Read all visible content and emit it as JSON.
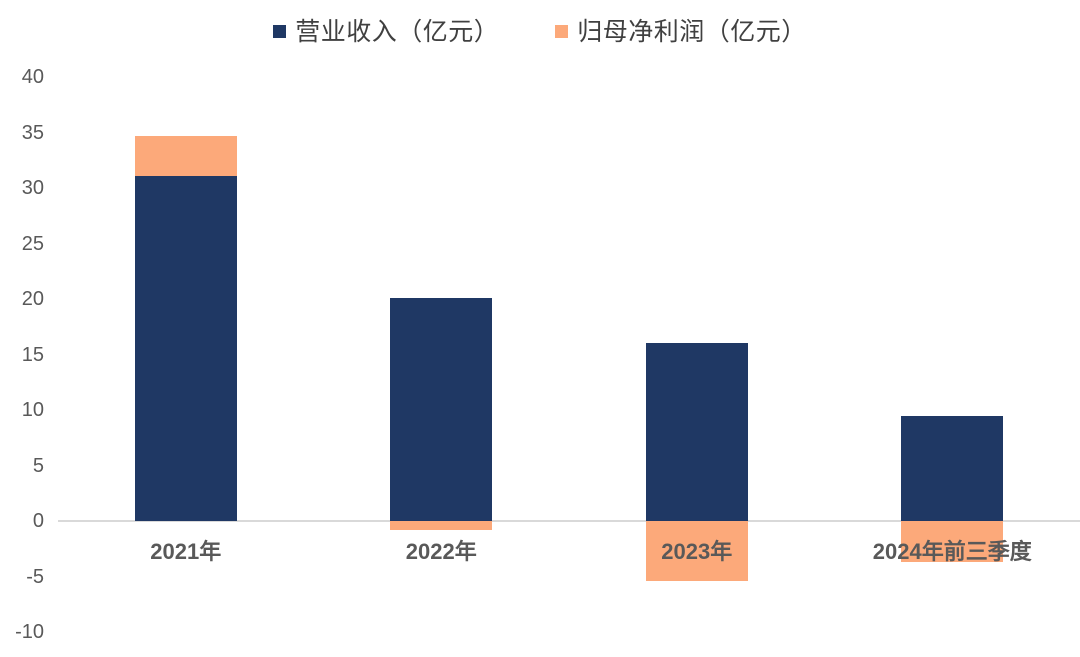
{
  "chart_data": {
    "type": "bar",
    "subtype": "stacked-column",
    "title": "",
    "xlabel": "",
    "ylabel": "",
    "categories": [
      "2021年",
      "2022年",
      "2023年",
      "2024年前三季度"
    ],
    "series": [
      {
        "name": "营业收入（亿元）",
        "color": "#1F3864",
        "values": [
          31.1,
          20.1,
          16.0,
          9.5
        ]
      },
      {
        "name": "归母净利润（亿元）",
        "color": "#FCA97A",
        "values": [
          3.6,
          -0.8,
          -5.4,
          -3.7
        ]
      }
    ],
    "y_axis": {
      "min": -10,
      "max": 40,
      "tick_step": 5,
      "ticks": [
        40,
        35,
        30,
        25,
        20,
        15,
        10,
        5,
        0,
        -5,
        -10
      ],
      "label_color": "#595959"
    },
    "ylim": [
      -10,
      40
    ],
    "grid": false,
    "axis_line_color": "#D9D9D9",
    "legend_position": "top",
    "legend": [
      {
        "label": "营业收入（亿元）",
        "color": "#1F3864"
      },
      {
        "label": "归母净利润（亿元）",
        "color": "#FCA97A"
      }
    ]
  }
}
